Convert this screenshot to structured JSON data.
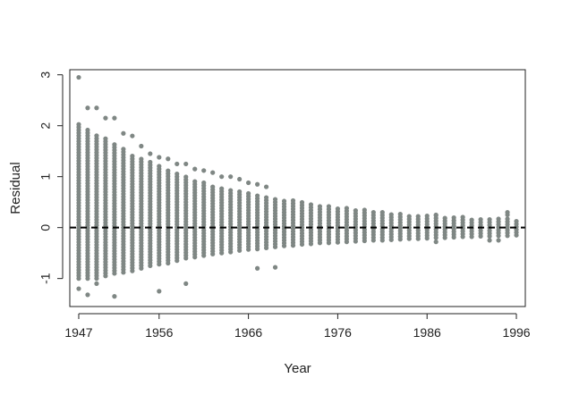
{
  "chart_data": {
    "type": "scatter",
    "title": "",
    "xlabel": "Year",
    "ylabel": "Residual",
    "xlim": [
      1946,
      1997
    ],
    "ylim": [
      -1.55,
      3.1
    ],
    "x_ticks": [
      1947,
      1956,
      1966,
      1976,
      1986,
      1996
    ],
    "x_tick_labels": [
      "1947",
      "1956",
      "1966",
      "1976",
      "1986",
      "1996"
    ],
    "y_ticks": [
      -1,
      0,
      1,
      2,
      3
    ],
    "y_tick_labels": [
      "-1",
      "0",
      "1",
      "2",
      "3"
    ],
    "point_color": "#7f8784",
    "reference_line": {
      "y": 0,
      "style": "dashed",
      "color": "#000000"
    },
    "grid": false,
    "legend": "none",
    "series": [
      {
        "years": [
          1947,
          1948,
          1949,
          1950,
          1951,
          1952,
          1953,
          1954,
          1955,
          1956,
          1957,
          1958,
          1959,
          1960,
          1961,
          1962,
          1963,
          1964,
          1965,
          1966,
          1967,
          1968,
          1969,
          1970,
          1971,
          1972,
          1973,
          1974,
          1975,
          1976,
          1977,
          1978,
          1979,
          1980,
          1981,
          1982,
          1983,
          1984,
          1985,
          1986,
          1987,
          1988,
          1989,
          1990,
          1991,
          1992,
          1993,
          1994,
          1995,
          1996
        ],
        "band_min": [
          -1.0,
          -1.0,
          -1.0,
          -0.95,
          -0.9,
          -0.88,
          -0.85,
          -0.8,
          -0.75,
          -0.72,
          -0.7,
          -0.65,
          -0.6,
          -0.58,
          -0.55,
          -0.52,
          -0.5,
          -0.48,
          -0.45,
          -0.43,
          -0.42,
          -0.4,
          -0.38,
          -0.36,
          -0.35,
          -0.33,
          -0.32,
          -0.3,
          -0.3,
          -0.29,
          -0.28,
          -0.27,
          -0.26,
          -0.25,
          -0.25,
          -0.24,
          -0.23,
          -0.22,
          -0.22,
          -0.21,
          -0.2,
          -0.2,
          -0.19,
          -0.18,
          -0.18,
          -0.17,
          -0.17,
          -0.16,
          -0.16,
          -0.15
        ],
        "band_max": [
          2.05,
          1.95,
          1.85,
          1.75,
          1.65,
          1.55,
          1.45,
          1.38,
          1.3,
          1.22,
          1.15,
          1.08,
          1.0,
          0.95,
          0.9,
          0.85,
          0.8,
          0.76,
          0.72,
          0.68,
          0.65,
          0.62,
          0.59,
          0.56,
          0.53,
          0.5,
          0.47,
          0.45,
          0.43,
          0.41,
          0.39,
          0.37,
          0.35,
          0.33,
          0.31,
          0.3,
          0.28,
          0.27,
          0.26,
          0.25,
          0.24,
          0.23,
          0.22,
          0.21,
          0.2,
          0.19,
          0.18,
          0.17,
          0.17,
          0.16
        ],
        "outliers": [
          {
            "x": 1947,
            "y": 2.95
          },
          {
            "x": 1947,
            "y": -1.2
          },
          {
            "x": 1948,
            "y": 2.35
          },
          {
            "x": 1948,
            "y": -1.32
          },
          {
            "x": 1949,
            "y": 2.35
          },
          {
            "x": 1949,
            "y": -1.1
          },
          {
            "x": 1950,
            "y": 2.15
          },
          {
            "x": 1951,
            "y": 2.15
          },
          {
            "x": 1951,
            "y": -1.35
          },
          {
            "x": 1952,
            "y": 1.85
          },
          {
            "x": 1953,
            "y": 1.8
          },
          {
            "x": 1954,
            "y": 1.6
          },
          {
            "x": 1955,
            "y": 1.45
          },
          {
            "x": 1956,
            "y": 1.38
          },
          {
            "x": 1956,
            "y": -1.25
          },
          {
            "x": 1957,
            "y": 1.35
          },
          {
            "x": 1958,
            "y": 1.25
          },
          {
            "x": 1959,
            "y": 1.25
          },
          {
            "x": 1959,
            "y": -1.1
          },
          {
            "x": 1960,
            "y": 1.15
          },
          {
            "x": 1961,
            "y": 1.12
          },
          {
            "x": 1962,
            "y": 1.08
          },
          {
            "x": 1963,
            "y": 1.0
          },
          {
            "x": 1964,
            "y": 1.0
          },
          {
            "x": 1965,
            "y": 0.95
          },
          {
            "x": 1966,
            "y": 0.88
          },
          {
            "x": 1967,
            "y": 0.85
          },
          {
            "x": 1967,
            "y": -0.8
          },
          {
            "x": 1969,
            "y": -0.78
          },
          {
            "x": 1968,
            "y": 0.8
          },
          {
            "x": 1987,
            "y": -0.28
          },
          {
            "x": 1987,
            "y": 0.25
          },
          {
            "x": 1993,
            "y": -0.25
          },
          {
            "x": 1994,
            "y": -0.25
          },
          {
            "x": 1995,
            "y": 0.3
          },
          {
            "x": 1995,
            "y": 0.25
          }
        ]
      }
    ]
  }
}
